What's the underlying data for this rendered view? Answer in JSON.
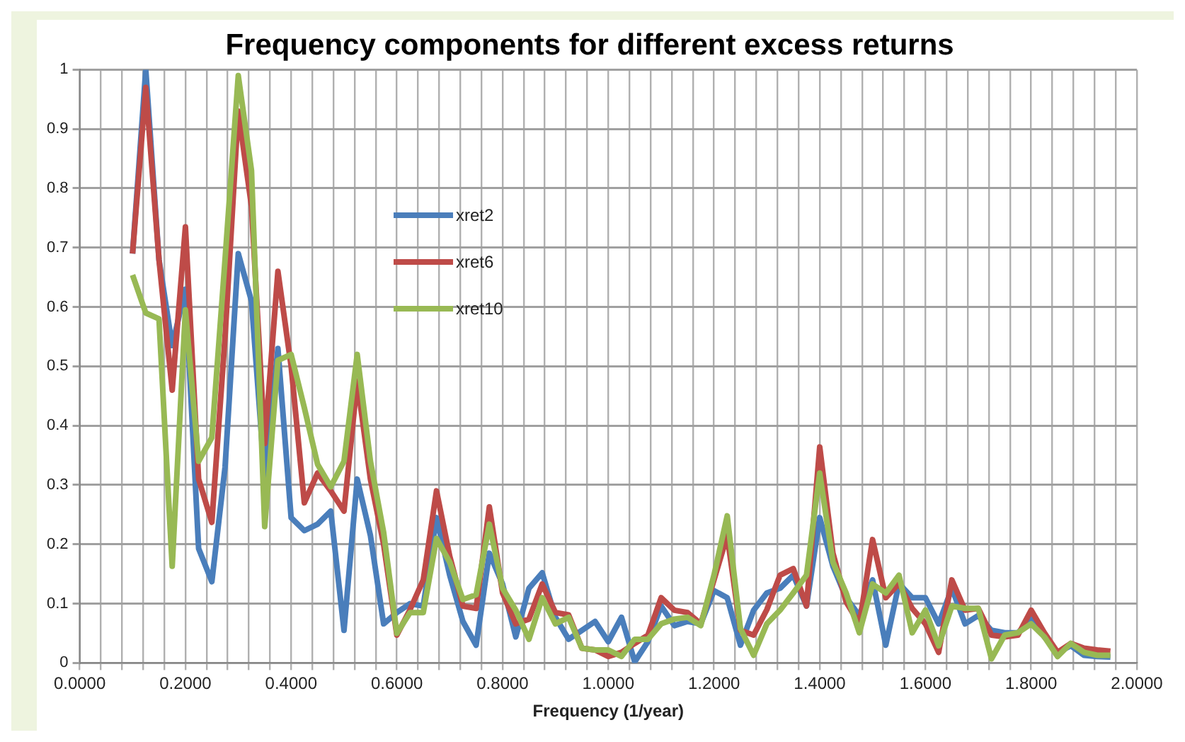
{
  "chart_data": {
    "type": "line",
    "title": "Frequency components for different excess returns",
    "xlabel": "Frequency (1/year)",
    "x": [
      0.1,
      0.125,
      0.15,
      0.175,
      0.2,
      0.225,
      0.25,
      0.275,
      0.3,
      0.325,
      0.35,
      0.375,
      0.4,
      0.425,
      0.45,
      0.475,
      0.5,
      0.525,
      0.55,
      0.575,
      0.6,
      0.625,
      0.65,
      0.675,
      0.7,
      0.725,
      0.75,
      0.775,
      0.8,
      0.825,
      0.85,
      0.875,
      0.9,
      0.925,
      0.95,
      0.975,
      1.0,
      1.025,
      1.05,
      1.075,
      1.1,
      1.125,
      1.15,
      1.175,
      1.2,
      1.225,
      1.25,
      1.275,
      1.3,
      1.325,
      1.35,
      1.375,
      1.4,
      1.425,
      1.45,
      1.475,
      1.5,
      1.525,
      1.55,
      1.575,
      1.6,
      1.625,
      1.65,
      1.675,
      1.7,
      1.725,
      1.75,
      1.775,
      1.8,
      1.825,
      1.85,
      1.875,
      1.9,
      1.925,
      1.95
    ],
    "series": [
      {
        "name": "xret2",
        "color": "#4a7ebb",
        "values": [
          0.69,
          1.0,
          0.68,
          0.535,
          0.63,
          0.193,
          0.137,
          0.33,
          0.69,
          0.61,
          0.31,
          0.53,
          0.245,
          0.223,
          0.234,
          0.256,
          0.055,
          0.31,
          0.215,
          0.066,
          0.085,
          0.1,
          0.096,
          0.245,
          0.148,
          0.07,
          0.03,
          0.185,
          0.133,
          0.044,
          0.126,
          0.152,
          0.077,
          0.04,
          0.055,
          0.07,
          0.036,
          0.077,
          0.002,
          0.036,
          0.096,
          0.063,
          0.07,
          0.066,
          0.122,
          0.11,
          0.03,
          0.089,
          0.118,
          0.126,
          0.148,
          0.096,
          0.245,
          0.163,
          0.11,
          0.08,
          0.14,
          0.03,
          0.134,
          0.11,
          0.11,
          0.066,
          0.126,
          0.066,
          0.08,
          0.055,
          0.051,
          0.051,
          0.074,
          0.044,
          0.018,
          0.029,
          0.013,
          0.011,
          0.01
        ]
      },
      {
        "name": "xret6",
        "color": "#be4b48",
        "values": [
          0.69,
          0.97,
          0.68,
          0.46,
          0.735,
          0.31,
          0.237,
          0.55,
          0.93,
          0.77,
          0.37,
          0.66,
          0.5,
          0.27,
          0.32,
          0.29,
          0.256,
          0.475,
          0.31,
          0.2,
          0.047,
          0.09,
          0.14,
          0.29,
          0.18,
          0.096,
          0.092,
          0.263,
          0.118,
          0.066,
          0.074,
          0.133,
          0.085,
          0.081,
          0.025,
          0.022,
          0.011,
          0.018,
          0.033,
          0.047,
          0.11,
          0.089,
          0.085,
          0.066,
          0.14,
          0.215,
          0.055,
          0.047,
          0.09,
          0.148,
          0.159,
          0.096,
          0.364,
          0.185,
          0.103,
          0.066,
          0.208,
          0.11,
          0.134,
          0.092,
          0.066,
          0.018,
          0.14,
          0.089,
          0.092,
          0.047,
          0.044,
          0.047,
          0.089,
          0.051,
          0.018,
          0.033,
          0.025,
          0.022,
          0.02
        ]
      },
      {
        "name": "xret10",
        "color": "#98b954",
        "values": [
          0.654,
          0.59,
          0.58,
          0.163,
          0.595,
          0.34,
          0.38,
          0.68,
          0.99,
          0.83,
          0.23,
          0.51,
          0.52,
          0.43,
          0.335,
          0.297,
          0.34,
          0.52,
          0.34,
          0.22,
          0.05,
          0.085,
          0.085,
          0.21,
          0.17,
          0.107,
          0.115,
          0.234,
          0.126,
          0.089,
          0.04,
          0.11,
          0.066,
          0.077,
          0.025,
          0.022,
          0.022,
          0.011,
          0.04,
          0.04,
          0.066,
          0.074,
          0.077,
          0.063,
          0.148,
          0.248,
          0.058,
          0.013,
          0.066,
          0.089,
          0.118,
          0.148,
          0.32,
          0.17,
          0.118,
          0.051,
          0.133,
          0.118,
          0.148,
          0.051,
          0.089,
          0.029,
          0.096,
          0.092,
          0.092,
          0.007,
          0.047,
          0.051,
          0.066,
          0.044,
          0.011,
          0.033,
          0.018,
          0.013,
          0.013
        ]
      }
    ],
    "xlim": [
      0,
      2
    ],
    "xticks": [
      {
        "value": 0,
        "label": "0.0000"
      },
      {
        "value": 0.04,
        "label": null
      },
      {
        "value": 0.08,
        "label": null
      },
      {
        "value": 0.12,
        "label": null
      },
      {
        "value": 0.16,
        "label": null
      },
      {
        "value": 0.2,
        "label": "0.2000"
      },
      {
        "value": 0.24,
        "label": null
      },
      {
        "value": 0.28,
        "label": null
      },
      {
        "value": 0.32,
        "label": null
      },
      {
        "value": 0.36,
        "label": null
      },
      {
        "value": 0.4,
        "label": "0.4000"
      },
      {
        "value": 0.44,
        "label": null
      },
      {
        "value": 0.48,
        "label": null
      },
      {
        "value": 0.52,
        "label": null
      },
      {
        "value": 0.56,
        "label": null
      },
      {
        "value": 0.6,
        "label": "0.6000"
      },
      {
        "value": 0.64,
        "label": null
      },
      {
        "value": 0.68,
        "label": null
      },
      {
        "value": 0.72,
        "label": null
      },
      {
        "value": 0.76,
        "label": null
      },
      {
        "value": 0.8,
        "label": "0.8000"
      },
      {
        "value": 0.84,
        "label": null
      },
      {
        "value": 0.88,
        "label": null
      },
      {
        "value": 0.92,
        "label": null
      },
      {
        "value": 0.96,
        "label": null
      },
      {
        "value": 1.0,
        "label": "1.0000"
      },
      {
        "value": 1.04,
        "label": null
      },
      {
        "value": 1.08,
        "label": null
      },
      {
        "value": 1.12,
        "label": null
      },
      {
        "value": 1.16,
        "label": null
      },
      {
        "value": 1.2,
        "label": "1.2000"
      },
      {
        "value": 1.24,
        "label": null
      },
      {
        "value": 1.28,
        "label": null
      },
      {
        "value": 1.32,
        "label": null
      },
      {
        "value": 1.36,
        "label": null
      },
      {
        "value": 1.4,
        "label": "1.4000"
      },
      {
        "value": 1.44,
        "label": null
      },
      {
        "value": 1.48,
        "label": null
      },
      {
        "value": 1.52,
        "label": null
      },
      {
        "value": 1.56,
        "label": null
      },
      {
        "value": 1.6,
        "label": "1.6000"
      },
      {
        "value": 1.64,
        "label": null
      },
      {
        "value": 1.68,
        "label": null
      },
      {
        "value": 1.72,
        "label": null
      },
      {
        "value": 1.76,
        "label": null
      },
      {
        "value": 1.8,
        "label": "1.8000"
      },
      {
        "value": 1.84,
        "label": null
      },
      {
        "value": 1.88,
        "label": null
      },
      {
        "value": 1.92,
        "label": null
      },
      {
        "value": 1.96,
        "label": null
      },
      {
        "value": 2.0,
        "label": "2.0000"
      }
    ],
    "ylim": [
      0,
      1
    ],
    "yticks": [
      0,
      0.1,
      0.2,
      0.3,
      0.4,
      0.5,
      0.6,
      0.7,
      0.8,
      0.9,
      1
    ],
    "grid": true,
    "legend": "top left",
    "marker": "none",
    "line_style": "solid"
  }
}
